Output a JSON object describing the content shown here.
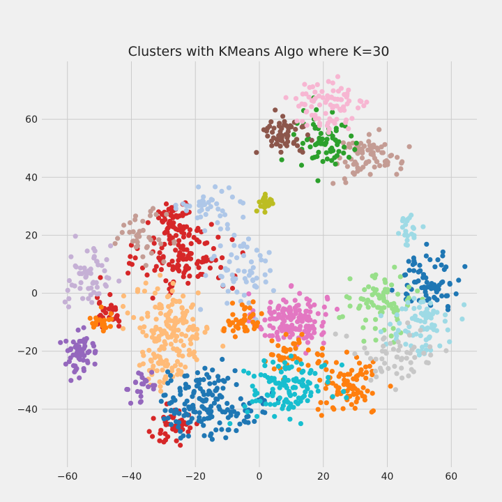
{
  "chart_data": {
    "type": "scatter",
    "title": "Clusters with KMeans Algo where K=30",
    "xlabel": "",
    "ylabel": "",
    "xlim": [
      -68,
      68
    ],
    "ylim": [
      -60,
      80
    ],
    "x_ticks": [
      -60,
      -40,
      -20,
      0,
      20,
      40,
      60
    ],
    "y_ticks": [
      -40,
      -20,
      0,
      20,
      40,
      60
    ],
    "x_tick_labels": [
      "−60",
      "−40",
      "−20",
      "0",
      "20",
      "40",
      "60"
    ],
    "y_tick_labels": [
      "−40",
      "−20",
      "0",
      "20",
      "40",
      "60"
    ],
    "grid": true,
    "legend": false,
    "n_clusters": 30,
    "clusters": [
      {
        "id": 0,
        "color": "#e377c2",
        "center": [
          10,
          -9
        ],
        "spread": [
          5.5,
          4.5
        ],
        "points": 150
      },
      {
        "id": 1,
        "color": "#d62728",
        "center": [
          -27,
          26
        ],
        "spread": [
          3,
          4
        ],
        "points": 55
      },
      {
        "id": 2,
        "color": "#d62728",
        "center": [
          -23,
          12
        ],
        "spread": [
          7,
          6
        ],
        "points": 120
      },
      {
        "id": 3,
        "color": "#d62728",
        "center": [
          -27,
          -46
        ],
        "spread": [
          4,
          3
        ],
        "points": 45
      },
      {
        "id": 4,
        "color": "#d62728",
        "center": [
          -47,
          -5
        ],
        "spread": [
          2.5,
          4
        ],
        "points": 28
      },
      {
        "id": 5,
        "color": "#ffbb78",
        "center": [
          -27,
          -12
        ],
        "spread": [
          6,
          7
        ],
        "points": 150
      },
      {
        "id": 6,
        "color": "#ffbb78",
        "center": [
          -30,
          -26
        ],
        "spread": [
          4,
          3
        ],
        "points": 40
      },
      {
        "id": 7,
        "color": "#1f77b4",
        "center": [
          -20,
          -38
        ],
        "spread": [
          6,
          6
        ],
        "points": 110
      },
      {
        "id": 8,
        "color": "#1f77b4",
        "center": [
          -7,
          -38
        ],
        "spread": [
          5,
          5
        ],
        "points": 50
      },
      {
        "id": 9,
        "color": "#1f77b4",
        "center": [
          53,
          4
        ],
        "spread": [
          5,
          5
        ],
        "points": 75
      },
      {
        "id": 10,
        "color": "#9467bd",
        "center": [
          -56,
          -21
        ],
        "spread": [
          3,
          3.5
        ],
        "points": 60
      },
      {
        "id": 11,
        "color": "#9467bd",
        "center": [
          -37,
          -32
        ],
        "spread": [
          3,
          3
        ],
        "points": 22
      },
      {
        "id": 12,
        "color": "#c5b0d5",
        "center": [
          -53,
          5
        ],
        "spread": [
          3.5,
          6
        ],
        "points": 55
      },
      {
        "id": 13,
        "color": "#c49c94",
        "center": [
          -37,
          20
        ],
        "spread": [
          4,
          4
        ],
        "points": 38
      },
      {
        "id": 14,
        "color": "#c49c94",
        "center": [
          34,
          47
        ],
        "spread": [
          5,
          4
        ],
        "points": 75
      },
      {
        "id": 15,
        "color": "#aec7e8",
        "center": [
          -15,
          30
        ],
        "spread": [
          5,
          3
        ],
        "points": 40
      },
      {
        "id": 16,
        "color": "#aec7e8",
        "center": [
          -6,
          8
        ],
        "spread": [
          5,
          8
        ],
        "points": 60
      },
      {
        "id": 17,
        "color": "#ff7f0e",
        "center": [
          -5,
          -9
        ],
        "spread": [
          3,
          2.5
        ],
        "points": 42
      },
      {
        "id": 18,
        "color": "#ff7f0e",
        "center": [
          -49,
          -10
        ],
        "spread": [
          2,
          2
        ],
        "points": 20
      },
      {
        "id": 19,
        "color": "#ff7f0e",
        "center": [
          28,
          -32
        ],
        "spread": [
          5,
          5
        ],
        "points": 85
      },
      {
        "id": 20,
        "color": "#ff7f0e",
        "center": [
          10,
          -22
        ],
        "spread": [
          5,
          3
        ],
        "points": 40
      },
      {
        "id": 21,
        "color": "#17becf",
        "center": [
          9,
          -32
        ],
        "spread": [
          7,
          5
        ],
        "points": 120
      },
      {
        "id": 22,
        "color": "#98df8a",
        "center": [
          38,
          -4
        ],
        "spread": [
          5,
          5
        ],
        "points": 75
      },
      {
        "id": 23,
        "color": "#9edae5",
        "center": [
          51,
          -11
        ],
        "spread": [
          5,
          5
        ],
        "points": 75
      },
      {
        "id": 24,
        "color": "#9edae5",
        "center": [
          46,
          22
        ],
        "spread": [
          2,
          3
        ],
        "points": 22
      },
      {
        "id": 25,
        "color": "#c7c7c7",
        "center": [
          42,
          -22
        ],
        "spread": [
          7,
          5
        ],
        "points": 55
      },
      {
        "id": 26,
        "color": "#2ca02c",
        "center": [
          20,
          52
        ],
        "spread": [
          5,
          6
        ],
        "points": 70
      },
      {
        "id": 27,
        "color": "#8c564b",
        "center": [
          7,
          55
        ],
        "spread": [
          4,
          4
        ],
        "points": 55
      },
      {
        "id": 28,
        "color": "#f7b6d2",
        "center": [
          22,
          64
        ],
        "spread": [
          6,
          5
        ],
        "points": 85
      },
      {
        "id": 29,
        "color": "#bcbd22",
        "center": [
          2,
          31
        ],
        "spread": [
          1.5,
          1.5
        ],
        "points": 25
      }
    ]
  }
}
